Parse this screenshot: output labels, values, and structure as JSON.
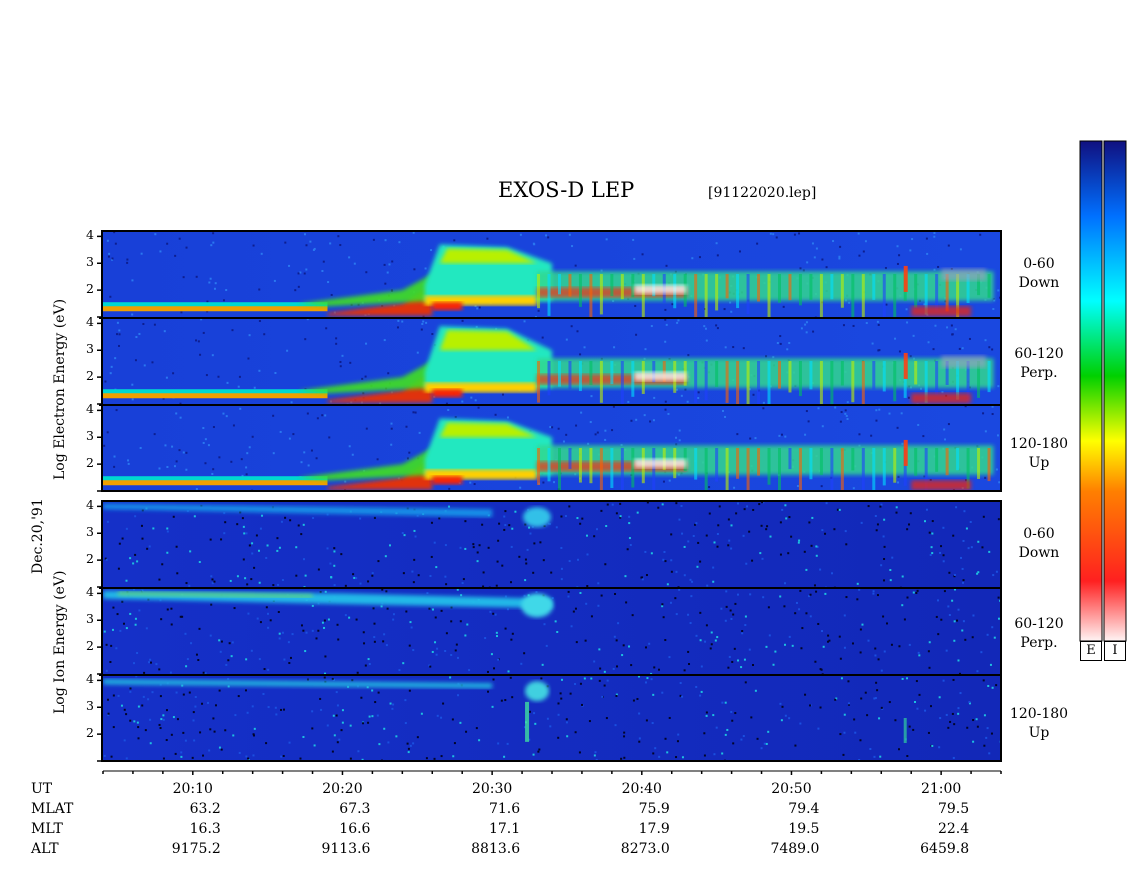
{
  "header": {
    "title": "EXOS-D LEP",
    "filename": "[91122020.lep]"
  },
  "axis_labels": {
    "electron": "Log  Electron  Energy (eV)",
    "ion": "Log  Ion  Energy (eV)",
    "date": "Dec.20,'91"
  },
  "panels": [
    {
      "label_line1": "0-60",
      "label_line2": "Down"
    },
    {
      "label_line1": "60-120",
      "label_line2": "Perp."
    },
    {
      "label_line1": "120-180",
      "label_line2": "Up"
    },
    {
      "label_line1": "0-60",
      "label_line2": "Down"
    },
    {
      "label_line1": "60-120",
      "label_line2": "Perp."
    },
    {
      "label_line1": "120-180",
      "label_line2": "Up"
    }
  ],
  "colorbar": {
    "electron_label": "E",
    "ion_label": "I"
  },
  "time_axis": {
    "ut_label": "UT",
    "times": [
      "20:10",
      "20:20",
      "20:30",
      "20:40",
      "20:50",
      "21:00"
    ],
    "rows": [
      {
        "label": "MLAT",
        "values": [
          "63.2",
          "67.3",
          "71.6",
          "75.9",
          "79.4",
          "79.5"
        ]
      },
      {
        "label": "MLT",
        "values": [
          "16.3",
          "16.6",
          "17.1",
          "17.9",
          "19.5",
          "22.4"
        ]
      },
      {
        "label": "ALT",
        "values": [
          "9175.2",
          "9113.6",
          "8813.6",
          "8273.0",
          "7489.0",
          "6459.8"
        ]
      }
    ]
  },
  "chart_data": {
    "type": "heatmap",
    "title": "EXOS-D LEP",
    "xlabel": "UT",
    "ylabel": "Log Energy (eV)",
    "x_ticks": [
      "20:10",
      "20:20",
      "20:30",
      "20:40",
      "20:50",
      "21:00"
    ],
    "xlim_minutes_after_2000": [
      4,
      64
    ],
    "y_ticks": [
      1,
      2,
      3,
      4
    ],
    "ylim": [
      1,
      4.2
    ],
    "panels": [
      {
        "species": "Electron",
        "pitch": "0-60",
        "direction": "Down"
      },
      {
        "species": "Electron",
        "pitch": "60-120",
        "direction": "Perp."
      },
      {
        "species": "Electron",
        "pitch": "120-180",
        "direction": "Up"
      },
      {
        "species": "Ion",
        "pitch": "0-60",
        "direction": "Down"
      },
      {
        "species": "Ion",
        "pitch": "60-120",
        "direction": "Perp."
      },
      {
        "species": "Ion",
        "pitch": "120-180",
        "direction": "Up"
      }
    ],
    "colormap": [
      "#fff0f0",
      "#ff2020",
      "#ff8000",
      "#ffff00",
      "#00c000",
      "#00ffff",
      "#0060ff",
      "#1010a0"
    ]
  }
}
